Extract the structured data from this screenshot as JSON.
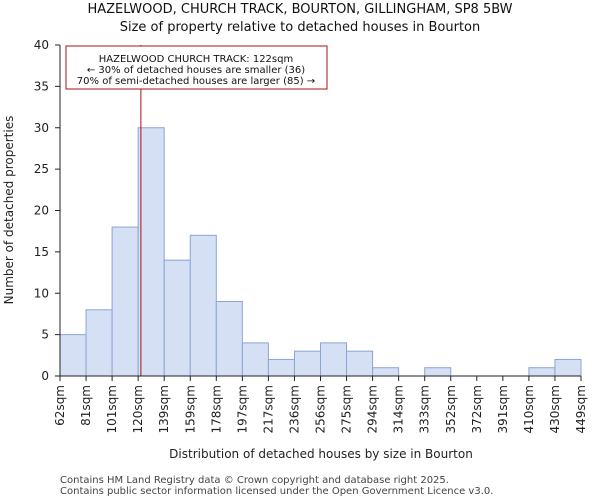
{
  "chart_data": {
    "type": "bar",
    "title": "HAZELWOOD, CHURCH TRACK, BOURTON, GILLINGHAM, SP8 5BW",
    "subtitle": "Size of property relative to detached houses in Bourton",
    "xlabel": "Distribution of detached houses by size in Bourton",
    "ylabel": "Number of detached properties",
    "ylim": [
      0,
      40
    ],
    "yticks": [
      0,
      5,
      10,
      15,
      20,
      25,
      30,
      35,
      40
    ],
    "grid": false,
    "bin_edges": [
      "62sqm",
      "81sqm",
      "101sqm",
      "120sqm",
      "139sqm",
      "159sqm",
      "178sqm",
      "197sqm",
      "217sqm",
      "236sqm",
      "256sqm",
      "275sqm",
      "294sqm",
      "314sqm",
      "333sqm",
      "352sqm",
      "372sqm",
      "391sqm",
      "410sqm",
      "430sqm",
      "449sqm"
    ],
    "values": [
      5,
      8,
      18,
      30,
      14,
      17,
      9,
      4,
      2,
      3,
      4,
      3,
      1,
      0,
      1,
      0,
      0,
      0,
      1,
      2
    ],
    "marker": {
      "value_sqm": 122,
      "bin_low": 120,
      "bin_high": 139
    },
    "annotation": {
      "lines": [
        "HAZELWOOD CHURCH TRACK: 122sqm",
        "← 30% of detached houses are smaller (36)",
        "70% of semi-detached houses are larger (85) →"
      ]
    },
    "colors": {
      "bar_fill": "#d6e0f5",
      "bar_stroke": "#8aa4d6",
      "marker": "#aa1111",
      "axis": "#222222"
    }
  },
  "footer": [
    "Contains HM Land Registry data © Crown copyright and database right 2025.",
    "Contains public sector information licensed under the Open Government Licence v3.0."
  ]
}
